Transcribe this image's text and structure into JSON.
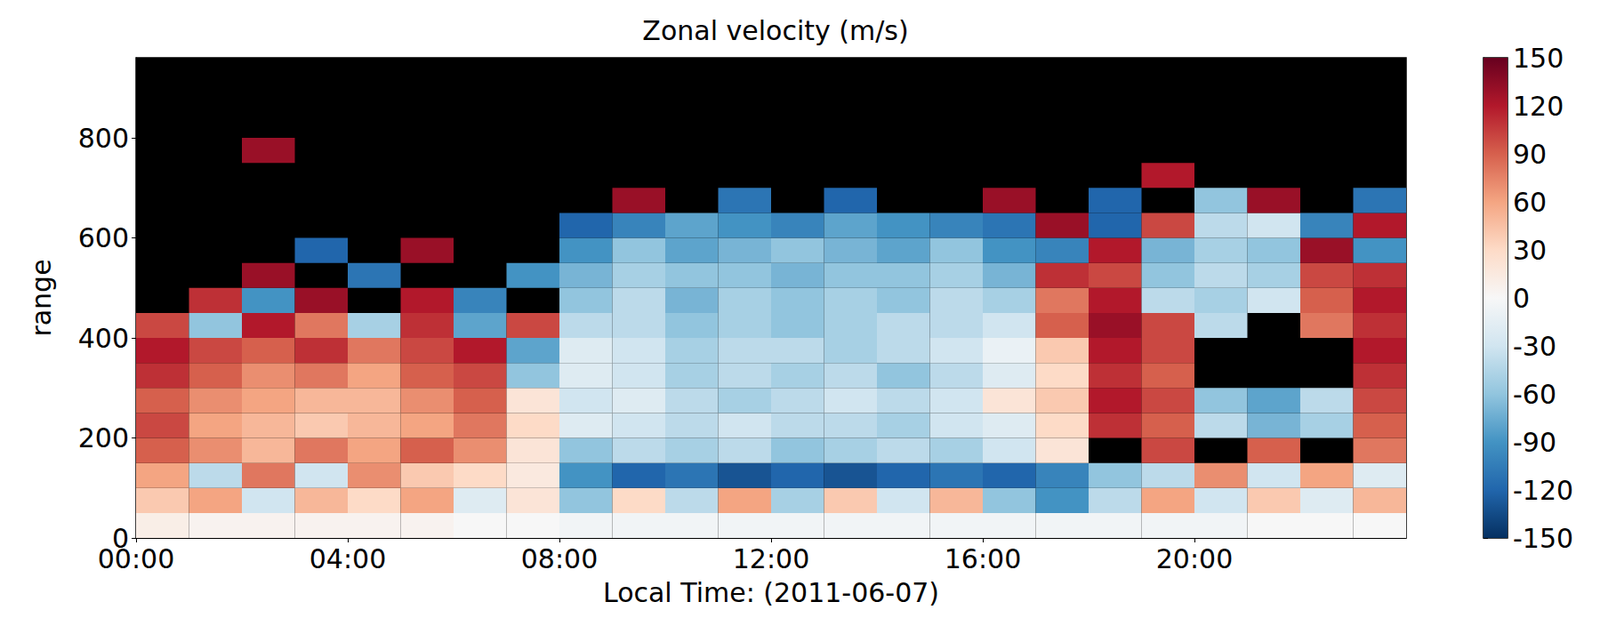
{
  "chart_data": {
    "type": "heatmap",
    "title": "Zonal velocity (m/s)",
    "x_label": "Local Time: (2011-06-07)",
    "y_label": "range",
    "xlim": [
      0,
      24
    ],
    "ylim": [
      0,
      960
    ],
    "xticks": [
      {
        "value": 0,
        "label": "00:00"
      },
      {
        "value": 4,
        "label": "04:00"
      },
      {
        "value": 8,
        "label": "08:00"
      },
      {
        "value": 12,
        "label": "12:00"
      },
      {
        "value": 16,
        "label": "16:00"
      },
      {
        "value": 20,
        "label": "20:00"
      }
    ],
    "yticks": [
      0,
      200,
      400,
      600,
      800
    ],
    "grid": false,
    "x_edges": [
      0,
      1,
      2,
      3,
      4,
      5,
      6,
      7,
      8,
      9,
      10,
      11,
      12,
      13,
      14,
      15,
      16,
      17,
      18,
      19,
      20,
      21,
      22,
      23,
      24
    ],
    "y_edges": [
      0,
      50,
      100,
      150,
      200,
      250,
      300,
      350,
      400,
      450,
      500,
      550,
      600,
      650,
      700,
      750,
      800,
      850,
      900,
      950
    ],
    "values": [
      [
        10,
        5,
        5,
        5,
        5,
        5,
        0,
        0,
        -5,
        -5,
        -5,
        -5,
        -5,
        -5,
        -5,
        -5,
        -5,
        -5,
        -5,
        -5,
        -5,
        0,
        0,
        0
      ],
      [
        40,
        60,
        -30,
        50,
        30,
        60,
        -20,
        20,
        -60,
        30,
        -40,
        60,
        -50,
        40,
        -30,
        50,
        -60,
        -90,
        -40,
        60,
        -30,
        40,
        -20,
        50
      ],
      [
        60,
        -40,
        80,
        -30,
        70,
        40,
        30,
        15,
        -90,
        -120,
        -110,
        -130,
        -120,
        -130,
        -120,
        -110,
        -120,
        -100,
        -60,
        -40,
        70,
        -30,
        60,
        -20
      ],
      [
        90,
        70,
        50,
        80,
        60,
        90,
        70,
        20,
        -60,
        -40,
        -50,
        -40,
        -60,
        -50,
        -40,
        -50,
        -30,
        20,
        null,
        100,
        null,
        90,
        null,
        80
      ],
      [
        100,
        60,
        50,
        40,
        50,
        60,
        80,
        30,
        -20,
        -30,
        -40,
        -30,
        -40,
        -40,
        -50,
        -30,
        -20,
        30,
        110,
        90,
        -40,
        -70,
        -50,
        90
      ],
      [
        90,
        70,
        60,
        50,
        50,
        70,
        90,
        20,
        -30,
        -20,
        -40,
        -50,
        -40,
        -30,
        -40,
        -30,
        20,
        40,
        120,
        100,
        -60,
        -80,
        -40,
        100
      ],
      [
        110,
        90,
        70,
        80,
        60,
        90,
        100,
        -60,
        -20,
        -30,
        -50,
        -40,
        -50,
        -40,
        -60,
        -40,
        -20,
        30,
        110,
        90,
        null,
        null,
        null,
        110
      ],
      [
        120,
        100,
        90,
        110,
        80,
        100,
        120,
        -80,
        -20,
        -30,
        -50,
        -40,
        -40,
        -50,
        -40,
        -30,
        -10,
        40,
        120,
        100,
        null,
        null,
        null,
        120
      ],
      [
        100,
        -60,
        120,
        80,
        -50,
        110,
        -80,
        100,
        -40,
        -40,
        -60,
        -50,
        -60,
        -50,
        -40,
        -40,
        -30,
        90,
        130,
        100,
        -40,
        null,
        80,
        110
      ],
      [
        null,
        110,
        -90,
        130,
        null,
        120,
        -100,
        null,
        -60,
        -40,
        -70,
        -50,
        -60,
        -50,
        -60,
        -40,
        -50,
        80,
        120,
        -40,
        -50,
        -30,
        90,
        120
      ],
      [
        null,
        null,
        130,
        null,
        -110,
        null,
        null,
        -90,
        -70,
        -50,
        -60,
        -60,
        -70,
        -60,
        -60,
        -50,
        -70,
        110,
        100,
        -60,
        -40,
        -50,
        100,
        110
      ],
      [
        null,
        null,
        null,
        -120,
        null,
        130,
        null,
        null,
        -90,
        -60,
        -80,
        -70,
        -60,
        -70,
        -80,
        -60,
        -90,
        -100,
        120,
        -70,
        -50,
        -60,
        130,
        -90
      ],
      [
        null,
        null,
        null,
        null,
        null,
        null,
        null,
        null,
        -120,
        -100,
        -80,
        -90,
        -100,
        -80,
        -90,
        -100,
        -110,
        130,
        -120,
        100,
        -40,
        -30,
        -100,
        120
      ],
      [
        null,
        null,
        null,
        null,
        null,
        null,
        null,
        null,
        null,
        130,
        null,
        -110,
        null,
        -120,
        null,
        null,
        130,
        null,
        -120,
        null,
        -60,
        130,
        null,
        -110
      ],
      [
        null,
        null,
        null,
        null,
        null,
        null,
        null,
        null,
        null,
        null,
        null,
        null,
        null,
        null,
        null,
        null,
        null,
        null,
        null,
        120,
        null,
        null,
        null,
        null
      ],
      [
        null,
        null,
        130,
        null,
        null,
        null,
        null,
        null,
        null,
        null,
        null,
        null,
        null,
        null,
        null,
        null,
        null,
        null,
        null,
        null,
        null,
        null,
        null,
        null
      ],
      [
        null,
        null,
        null,
        null,
        null,
        null,
        null,
        null,
        null,
        null,
        null,
        null,
        null,
        null,
        null,
        null,
        null,
        null,
        null,
        null,
        null,
        null,
        null,
        null
      ],
      [
        null,
        null,
        null,
        null,
        null,
        null,
        null,
        null,
        null,
        null,
        null,
        null,
        null,
        null,
        null,
        null,
        null,
        null,
        null,
        null,
        null,
        null,
        null,
        null
      ],
      [
        null,
        null,
        null,
        null,
        null,
        null,
        null,
        null,
        null,
        null,
        null,
        null,
        null,
        null,
        null,
        null,
        null,
        null,
        null,
        null,
        null,
        null,
        null,
        null
      ]
    ],
    "colorbar": {
      "range": [
        -150,
        150
      ],
      "ticks": [
        -150,
        -120,
        -90,
        -60,
        -30,
        0,
        30,
        60,
        90,
        120,
        150
      ]
    }
  }
}
